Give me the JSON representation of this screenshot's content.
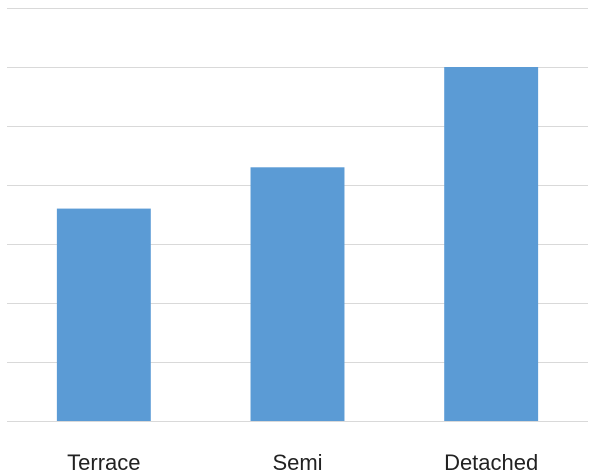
{
  "chart_data": {
    "type": "bar",
    "title": "",
    "xlabel": "",
    "ylabel": "",
    "categories": [
      "Terrace",
      "Semi",
      "Detached"
    ],
    "values": [
      3.6,
      4.3,
      6.0
    ],
    "ylim": [
      0,
      7
    ],
    "y_grid_step": 1,
    "grid": true,
    "legend": "none",
    "bar_color": "#5b9bd5",
    "grid_color": "#d9d9d9"
  }
}
